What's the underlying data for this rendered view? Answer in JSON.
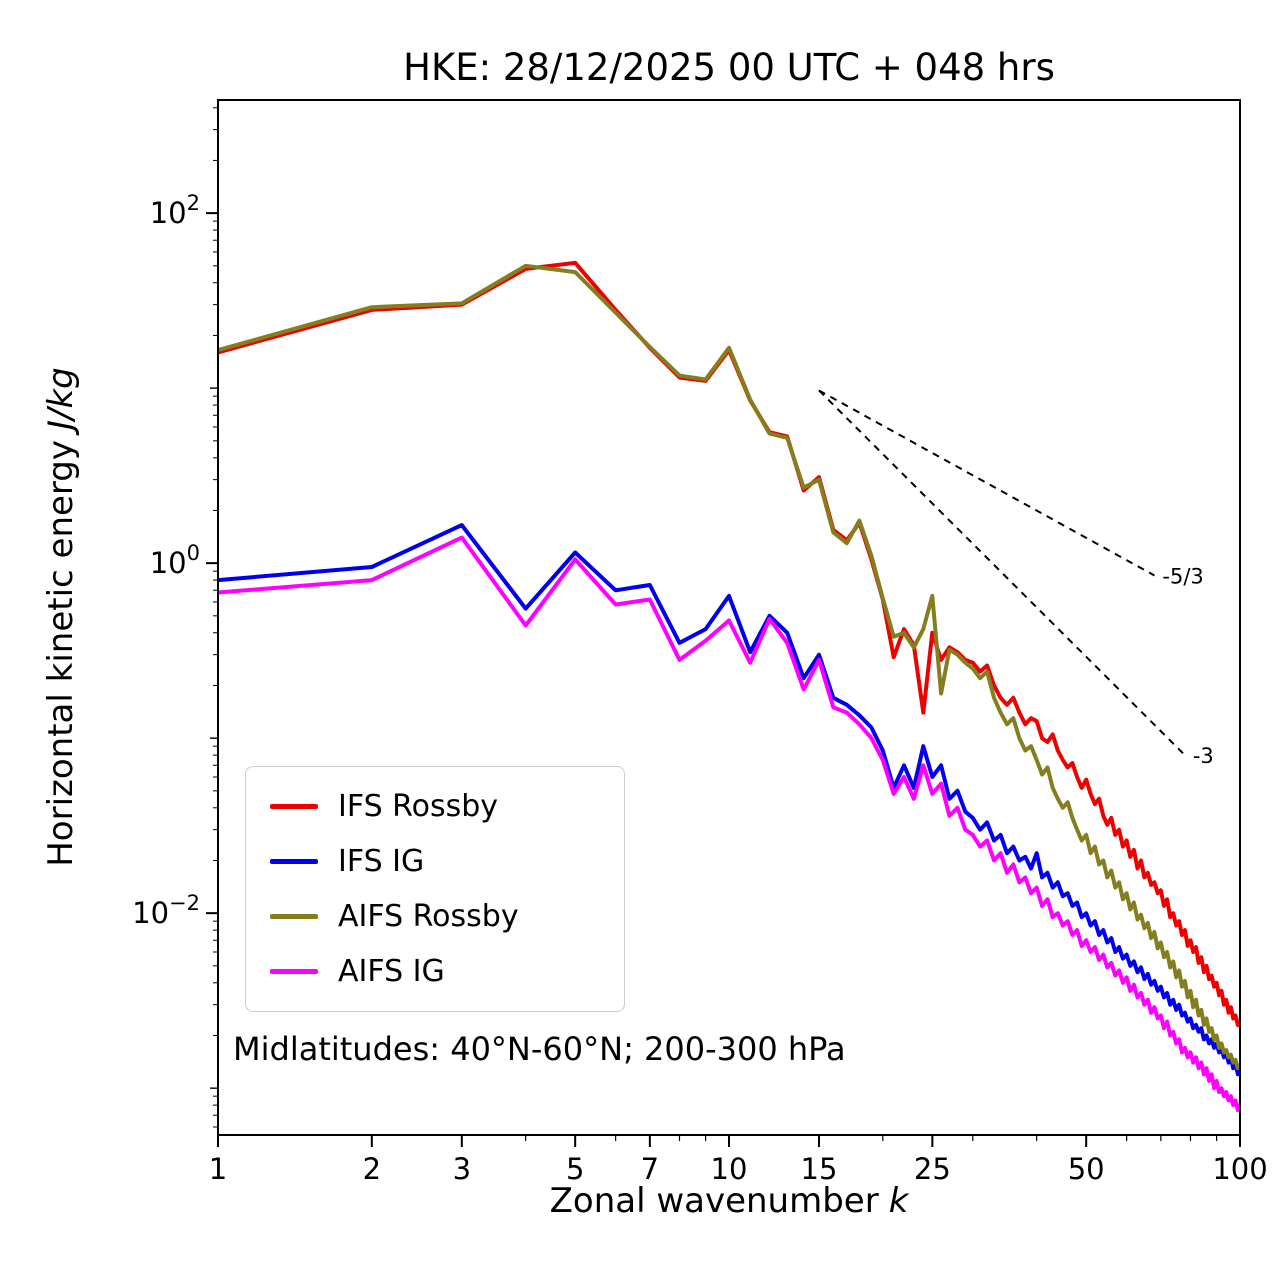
{
  "title": "HKE: 28/12/2025 00 UTC + 048 hrs",
  "annotation": "Midlatitudes: 40°N-60°N; 200-300 hPa",
  "chart_data": {
    "type": "line",
    "title": "HKE: 28/12/2025 00 UTC + 048 hrs",
    "xlabel": "Zonal wavenumber k",
    "ylabel": "Horizontal kinetic energy J/kg",
    "xlabel_text": "Zonal wavenumber",
    "xlabel_math": "k",
    "ylabel_text": "Horizontal kinetic energy",
    "ylabel_math": "J/kg",
    "xscale": "log",
    "yscale": "log",
    "grid": false,
    "legend_position": "lower left",
    "xlim": [
      1,
      100
    ],
    "ylim": [
      0.00054,
      443
    ],
    "x_major_ticks": [
      1,
      2,
      3,
      5,
      7,
      10,
      15,
      25,
      50,
      100
    ],
    "x_minor_ticks": [
      4,
      6,
      8,
      9,
      20,
      30,
      40,
      60,
      70,
      80,
      90
    ],
    "y_major_ticks": [
      {
        "value": 100,
        "exp": "2"
      },
      {
        "value": 1,
        "exp": "0"
      },
      {
        "value": 0.01,
        "exp": "−2"
      }
    ],
    "y_decade_minor_ticks": [
      10,
      0.1,
      0.001
    ],
    "reference_lines": [
      {
        "label": "-5/3",
        "x1": 15,
        "y1": 9.7,
        "x2": 68,
        "y2": 0.85
      },
      {
        "label": "-3",
        "x1": 15,
        "y1": 9.7,
        "x2": 78,
        "y2": 0.08
      }
    ],
    "x": [
      1,
      2,
      3,
      4,
      5,
      6,
      7,
      8,
      9,
      10,
      11,
      12,
      13,
      14,
      15,
      16,
      17,
      18,
      19,
      20,
      21,
      22,
      23,
      24,
      25,
      26,
      27,
      28,
      29,
      30,
      31,
      32,
      33,
      34,
      35,
      36,
      37,
      38,
      39,
      40,
      41,
      42,
      43,
      44,
      45,
      46,
      47,
      48,
      49,
      50,
      51,
      52,
      53,
      54,
      55,
      56,
      57,
      58,
      59,
      60,
      61,
      62,
      63,
      64,
      65,
      66,
      67,
      68,
      69,
      70,
      71,
      72,
      73,
      74,
      75,
      76,
      77,
      78,
      79,
      80,
      81,
      82,
      83,
      84,
      85,
      86,
      87,
      88,
      89,
      90,
      91,
      92,
      93,
      94,
      95,
      96,
      97,
      98,
      99,
      100
    ],
    "series": [
      {
        "name": "IFS Rossby",
        "color": "#ee0000",
        "values": [
          16,
          28,
          30,
          48,
          52,
          28,
          17,
          11.5,
          11,
          16.5,
          8.5,
          5.6,
          5.3,
          2.6,
          3.1,
          1.55,
          1.35,
          1.7,
          1.05,
          0.62,
          0.29,
          0.42,
          0.34,
          0.14,
          0.4,
          0.28,
          0.33,
          0.31,
          0.28,
          0.27,
          0.24,
          0.26,
          0.2,
          0.17,
          0.155,
          0.17,
          0.14,
          0.12,
          0.13,
          0.125,
          0.1,
          0.095,
          0.105,
          0.085,
          0.075,
          0.068,
          0.072,
          0.06,
          0.052,
          0.058,
          0.048,
          0.042,
          0.045,
          0.036,
          0.032,
          0.035,
          0.028,
          0.03,
          0.024,
          0.026,
          0.021,
          0.023,
          0.018,
          0.02,
          0.016,
          0.017,
          0.0145,
          0.015,
          0.013,
          0.0135,
          0.011,
          0.012,
          0.0095,
          0.01,
          0.0085,
          0.009,
          0.0075,
          0.008,
          0.0065,
          0.007,
          0.006,
          0.0064,
          0.0052,
          0.0056,
          0.0046,
          0.005,
          0.0042,
          0.0044,
          0.0038,
          0.004,
          0.0034,
          0.0036,
          0.003,
          0.0032,
          0.0027,
          0.0029,
          0.0025,
          0.0026,
          0.0023,
          0.0024
        ]
      },
      {
        "name": "IFS IG",
        "color": "#0000ee",
        "values": [
          0.8,
          0.95,
          1.65,
          0.55,
          1.15,
          0.7,
          0.75,
          0.35,
          0.42,
          0.65,
          0.31,
          0.5,
          0.4,
          0.22,
          0.3,
          0.17,
          0.155,
          0.135,
          0.115,
          0.085,
          0.052,
          0.07,
          0.052,
          0.09,
          0.06,
          0.07,
          0.045,
          0.05,
          0.038,
          0.035,
          0.03,
          0.033,
          0.026,
          0.028,
          0.022,
          0.024,
          0.02,
          0.021,
          0.018,
          0.022,
          0.016,
          0.017,
          0.014,
          0.015,
          0.0125,
          0.013,
          0.011,
          0.0115,
          0.0095,
          0.01,
          0.0085,
          0.009,
          0.0075,
          0.008,
          0.0068,
          0.0072,
          0.006,
          0.0064,
          0.0055,
          0.0058,
          0.005,
          0.0053,
          0.0046,
          0.0049,
          0.0042,
          0.0045,
          0.0039,
          0.0041,
          0.0036,
          0.0038,
          0.0033,
          0.0035,
          0.003,
          0.0032,
          0.0028,
          0.003,
          0.0026,
          0.0027,
          0.0024,
          0.0025,
          0.0022,
          0.0023,
          0.0021,
          0.0022,
          0.0019,
          0.002,
          0.0018,
          0.0019,
          0.0017,
          0.0018,
          0.0016,
          0.0017,
          0.0015,
          0.0016,
          0.0014,
          0.0015,
          0.0013,
          0.0014,
          0.0012,
          0.0013
        ]
      },
      {
        "name": "AIFS Rossby",
        "color": "#857e1f",
        "values": [
          16.5,
          29,
          30.5,
          50,
          46,
          27,
          17.2,
          11.8,
          11.2,
          17,
          8.6,
          5.5,
          5.2,
          2.7,
          3.0,
          1.5,
          1.3,
          1.75,
          1.1,
          0.63,
          0.38,
          0.4,
          0.33,
          0.42,
          0.65,
          0.18,
          0.32,
          0.3,
          0.27,
          0.25,
          0.22,
          0.24,
          0.17,
          0.14,
          0.12,
          0.13,
          0.1,
          0.085,
          0.09,
          0.075,
          0.062,
          0.068,
          0.052,
          0.045,
          0.04,
          0.043,
          0.035,
          0.03,
          0.026,
          0.028,
          0.022,
          0.024,
          0.019,
          0.02,
          0.016,
          0.0175,
          0.014,
          0.015,
          0.012,
          0.013,
          0.0105,
          0.0115,
          0.0092,
          0.0098,
          0.0082,
          0.0088,
          0.0072,
          0.0078,
          0.0063,
          0.0068,
          0.0056,
          0.006,
          0.0049,
          0.0053,
          0.0043,
          0.0047,
          0.0038,
          0.0041,
          0.0033,
          0.0036,
          0.0029,
          0.0032,
          0.0026,
          0.0028,
          0.0023,
          0.0025,
          0.0021,
          0.0022,
          0.0019,
          0.002,
          0.0017,
          0.0018,
          0.0016,
          0.00165,
          0.0015,
          0.00155,
          0.0014,
          0.00145,
          0.0013,
          0.00135
        ]
      },
      {
        "name": "AIFS IG",
        "color": "#ff00ff",
        "values": [
          0.68,
          0.8,
          1.4,
          0.44,
          1.05,
          0.58,
          0.62,
          0.28,
          0.36,
          0.47,
          0.27,
          0.48,
          0.35,
          0.19,
          0.28,
          0.15,
          0.14,
          0.12,
          0.1,
          0.075,
          0.048,
          0.06,
          0.045,
          0.07,
          0.048,
          0.055,
          0.036,
          0.04,
          0.03,
          0.028,
          0.024,
          0.026,
          0.02,
          0.022,
          0.017,
          0.019,
          0.015,
          0.016,
          0.013,
          0.014,
          0.011,
          0.012,
          0.0095,
          0.01,
          0.0085,
          0.009,
          0.0075,
          0.008,
          0.0065,
          0.007,
          0.006,
          0.0064,
          0.0054,
          0.0058,
          0.0049,
          0.0052,
          0.0044,
          0.0047,
          0.004,
          0.0043,
          0.0036,
          0.0039,
          0.0033,
          0.0035,
          0.003,
          0.0032,
          0.0027,
          0.0029,
          0.0025,
          0.0026,
          0.0022,
          0.0024,
          0.002,
          0.0021,
          0.0018,
          0.0019,
          0.0016,
          0.0017,
          0.0015,
          0.0016,
          0.0014,
          0.0015,
          0.0013,
          0.0014,
          0.0012,
          0.0013,
          0.0011,
          0.0012,
          0.001,
          0.0011,
          0.00095,
          0.001,
          0.0009,
          0.00095,
          0.00085,
          0.0009,
          0.0008,
          0.00085,
          0.00075,
          0.0008
        ]
      }
    ]
  }
}
